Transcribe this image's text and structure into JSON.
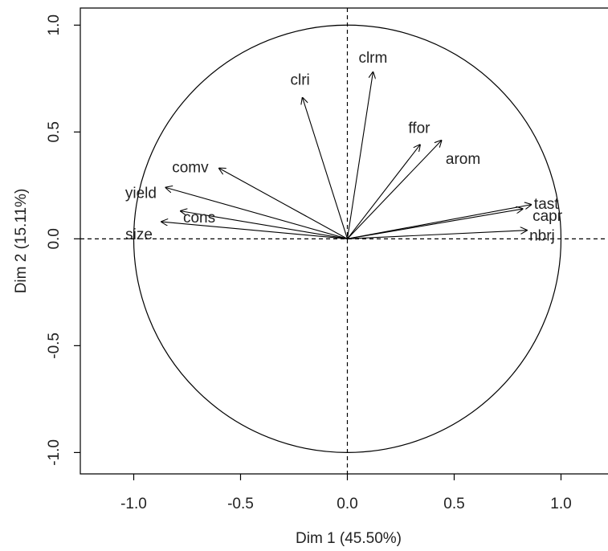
{
  "chart_data": {
    "type": "scatter",
    "subtype": "correlation-circle",
    "title": "",
    "xlabel": "Dim 1 (45.50%)",
    "ylabel": "Dim 2 (15.11%)",
    "xlim": [
      -1.25,
      1.22
    ],
    "ylim": [
      -1.1,
      1.08
    ],
    "xticks": [
      -1.0,
      -0.5,
      0.0,
      0.5,
      1.0
    ],
    "xtick_labels": [
      "-1.0",
      "-0.5",
      "0.0",
      "0.5",
      "1.0"
    ],
    "yticks": [
      -1.0,
      -0.5,
      0.0,
      0.5,
      1.0
    ],
    "ytick_labels": [
      "-1.0",
      "-0.5",
      "0.0",
      "0.5",
      "1.0"
    ],
    "grid": false,
    "unit_circle": true,
    "reference_lines": "dashed at x=0 and y=0",
    "variables": [
      {
        "label": "clrm",
        "x": 0.12,
        "y": 0.78
      },
      {
        "label": "clri",
        "x": -0.21,
        "y": 0.66
      },
      {
        "label": "ffor",
        "x": 0.34,
        "y": 0.44
      },
      {
        "label": "arom",
        "x": 0.44,
        "y": 0.46
      },
      {
        "label": "comv",
        "x": -0.6,
        "y": 0.33
      },
      {
        "label": "yield",
        "x": -0.85,
        "y": 0.24
      },
      {
        "label": "cons",
        "x": -0.78,
        "y": 0.13
      },
      {
        "label": "size",
        "x": -0.87,
        "y": 0.08
      },
      {
        "label": "tast",
        "x": 0.86,
        "y": 0.16
      },
      {
        "label": "capr",
        "x": 0.82,
        "y": 0.14
      },
      {
        "label": "nbrj",
        "x": 0.84,
        "y": 0.04
      }
    ]
  }
}
